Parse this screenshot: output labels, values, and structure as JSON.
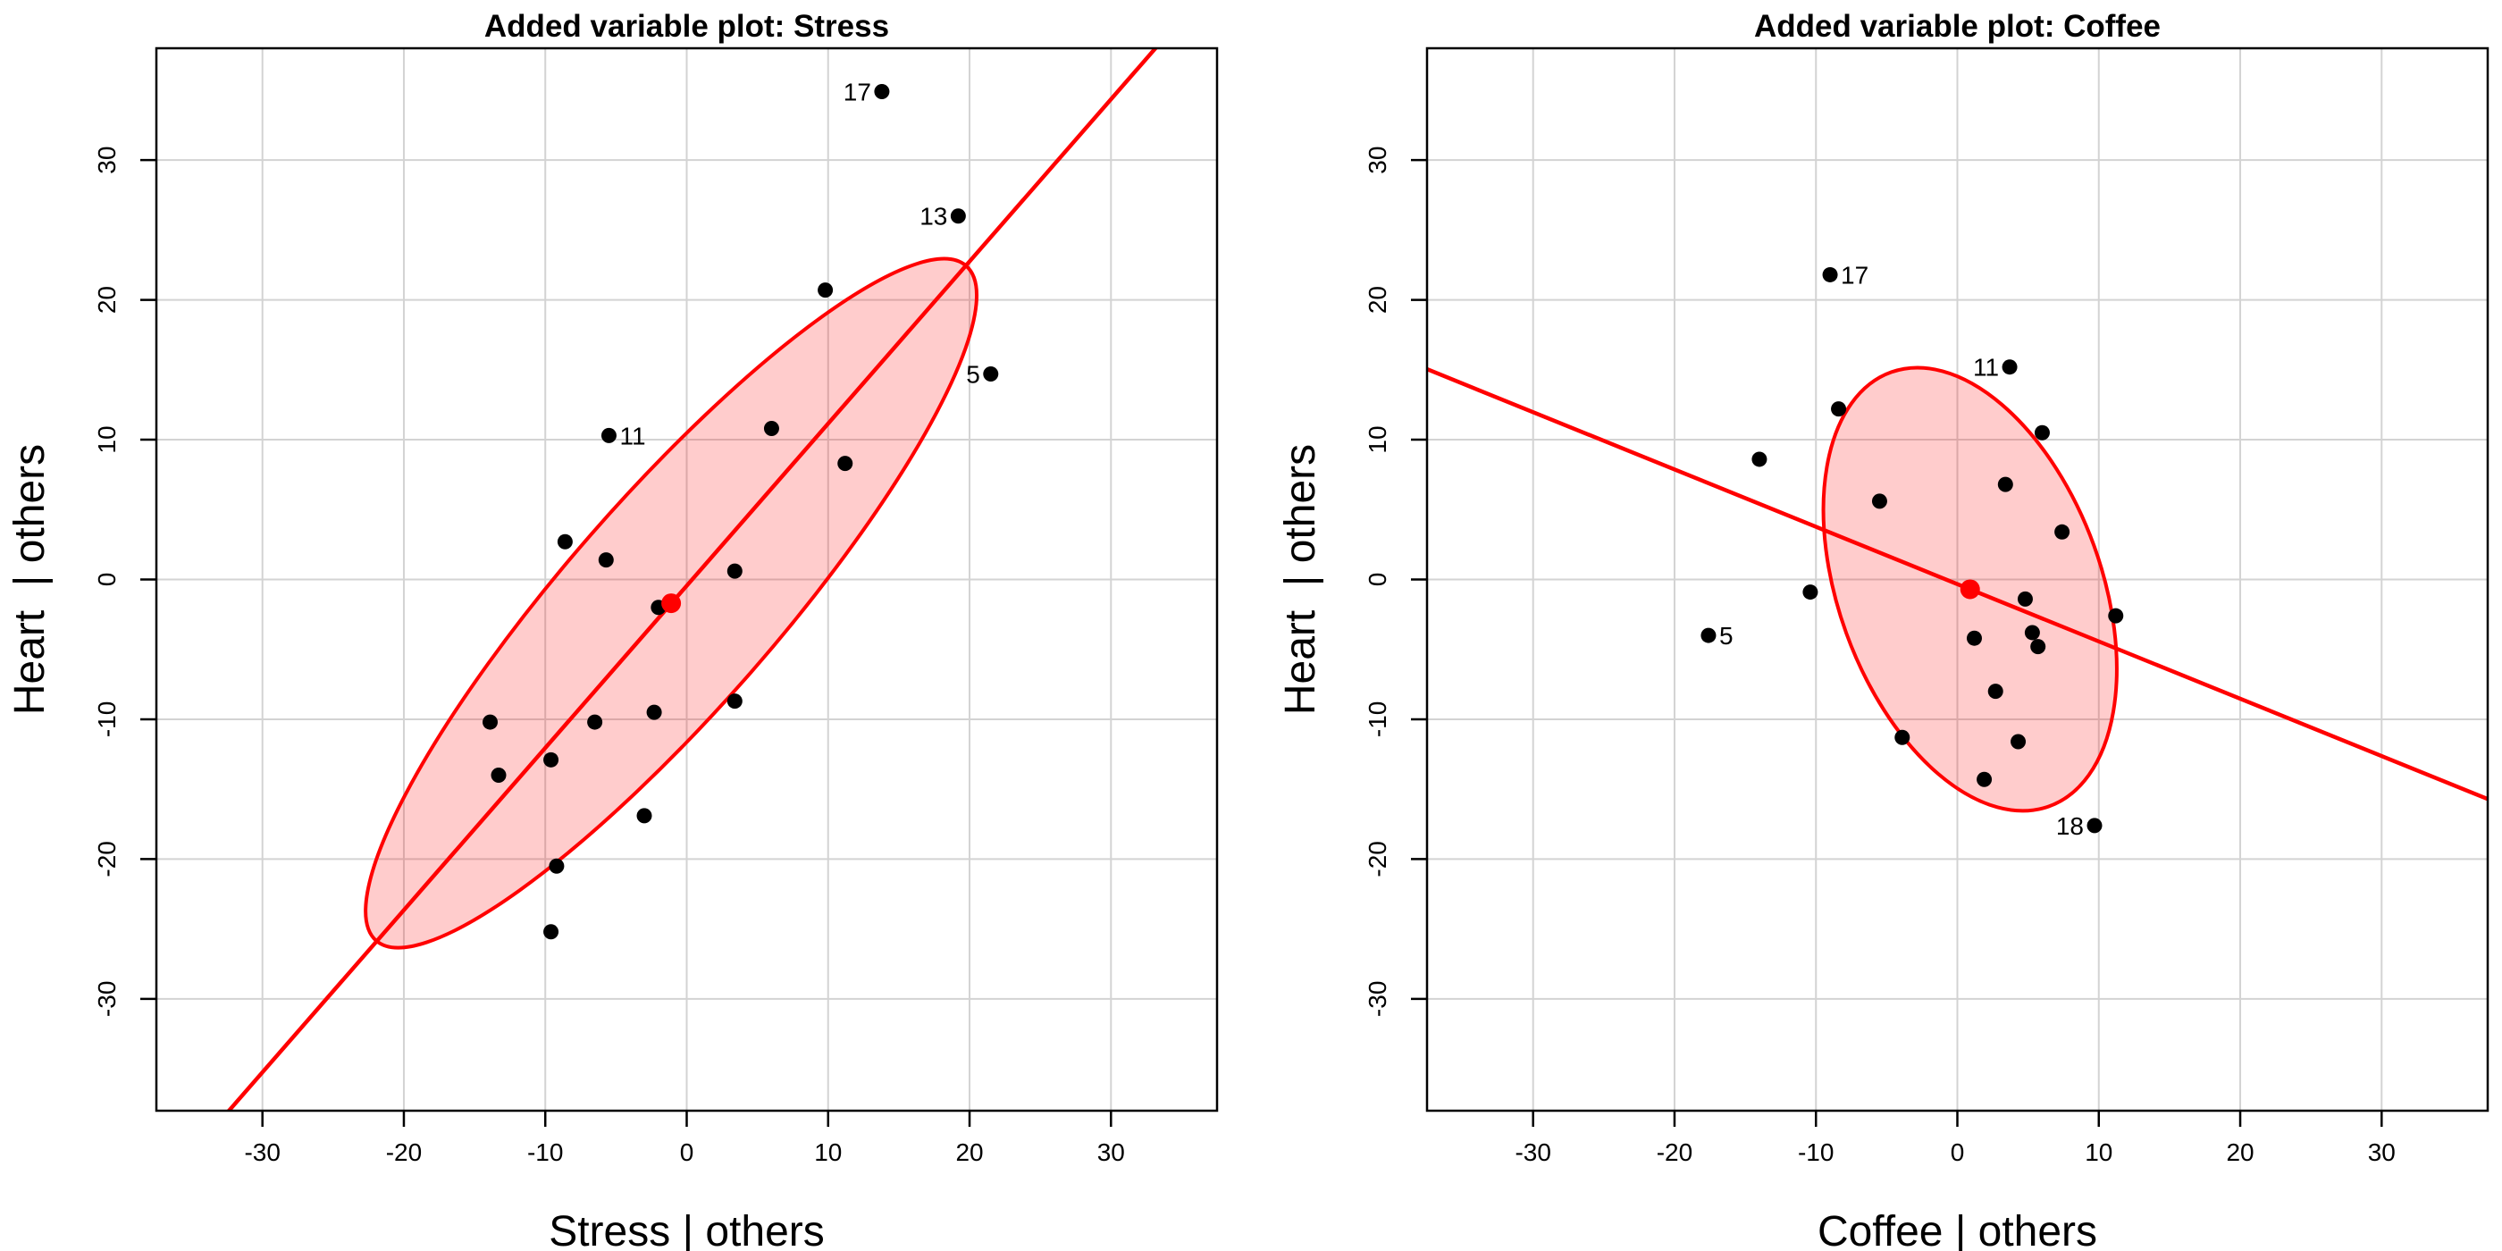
{
  "chart_data": [
    {
      "type": "scatter",
      "title": "Added variable plot: Stress",
      "xlabel": "Stress | others",
      "ylabel": "Heart  | others",
      "xlim": [
        -37.5,
        37.5
      ],
      "ylim": [
        -38,
        38
      ],
      "xticks": [
        -30,
        -20,
        -10,
        0,
        10,
        20,
        30
      ],
      "yticks": [
        -30,
        -20,
        -10,
        0,
        10,
        20,
        30
      ],
      "grid": true,
      "points": [
        {
          "x": 13.8,
          "y": 34.9,
          "label": "17"
        },
        {
          "x": 19.2,
          "y": 26.0,
          "label": "13"
        },
        {
          "x": 21.5,
          "y": 14.7,
          "label": "5"
        },
        {
          "x": -5.5,
          "y": 10.3,
          "label": "11"
        },
        {
          "x": 9.8,
          "y": 20.7,
          "label": ""
        },
        {
          "x": 6.0,
          "y": 10.8,
          "label": ""
        },
        {
          "x": 11.2,
          "y": 8.3,
          "label": ""
        },
        {
          "x": -8.6,
          "y": 2.7,
          "label": ""
        },
        {
          "x": -5.7,
          "y": 1.4,
          "label": ""
        },
        {
          "x": 3.4,
          "y": 0.6,
          "label": ""
        },
        {
          "x": -2.0,
          "y": -2.0,
          "label": ""
        },
        {
          "x": 3.4,
          "y": -8.7,
          "label": ""
        },
        {
          "x": -2.3,
          "y": -9.5,
          "label": ""
        },
        {
          "x": -6.5,
          "y": -10.2,
          "label": ""
        },
        {
          "x": -13.9,
          "y": -10.2,
          "label": ""
        },
        {
          "x": -9.6,
          "y": -12.9,
          "label": ""
        },
        {
          "x": -13.3,
          "y": -14.0,
          "label": ""
        },
        {
          "x": -3.0,
          "y": -16.9,
          "label": ""
        },
        {
          "x": -9.2,
          "y": -20.5,
          "label": ""
        },
        {
          "x": -9.6,
          "y": -25.2,
          "label": ""
        }
      ],
      "centroid": {
        "x": -1.1,
        "y": -1.7
      },
      "fit_line": {
        "slope": 1.16,
        "intercept": -0.45
      },
      "ellipse": {
        "cx": -1.1,
        "cy": -1.7,
        "rx": 31.9,
        "ry": 7.5,
        "angle_deg": 49.2
      }
    },
    {
      "type": "scatter",
      "title": "Added variable plot: Coffee",
      "xlabel": "Coffee | others",
      "ylabel": "Heart  | others",
      "xlim": [
        -37.5,
        37.5
      ],
      "ylim": [
        -38,
        38
      ],
      "xticks": [
        -30,
        -20,
        -10,
        0,
        10,
        20,
        30
      ],
      "yticks": [
        -30,
        -20,
        -10,
        0,
        10,
        20,
        30
      ],
      "grid": true,
      "points": [
        {
          "x": -9.0,
          "y": 21.8,
          "label": "17"
        },
        {
          "x": 3.7,
          "y": 15.2,
          "label": "11"
        },
        {
          "x": -17.6,
          "y": -4.0,
          "label": "5"
        },
        {
          "x": 9.7,
          "y": -17.6,
          "label": "18"
        },
        {
          "x": -8.4,
          "y": 12.2,
          "label": ""
        },
        {
          "x": 6.0,
          "y": 10.5,
          "label": ""
        },
        {
          "x": -14.0,
          "y": 8.6,
          "label": ""
        },
        {
          "x": 3.4,
          "y": 6.8,
          "label": ""
        },
        {
          "x": -5.5,
          "y": 5.6,
          "label": ""
        },
        {
          "x": 7.4,
          "y": 3.4,
          "label": ""
        },
        {
          "x": -10.4,
          "y": -0.9,
          "label": ""
        },
        {
          "x": 4.8,
          "y": -1.4,
          "label": ""
        },
        {
          "x": 11.2,
          "y": -2.6,
          "label": ""
        },
        {
          "x": 5.3,
          "y": -3.8,
          "label": ""
        },
        {
          "x": 1.2,
          "y": -4.2,
          "label": ""
        },
        {
          "x": 5.7,
          "y": -4.8,
          "label": ""
        },
        {
          "x": 2.7,
          "y": -8.0,
          "label": ""
        },
        {
          "x": -3.9,
          "y": -11.3,
          "label": ""
        },
        {
          "x": 4.3,
          "y": -11.6,
          "label": ""
        },
        {
          "x": 1.9,
          "y": -14.3,
          "label": ""
        }
      ],
      "centroid": {
        "x": 0.9,
        "y": -0.7
      },
      "fit_line": {
        "slope": -0.41,
        "intercept": -0.33
      },
      "ellipse": {
        "cx": 0.9,
        "cy": -0.7,
        "rx": 16.5,
        "ry": 9.3,
        "angle_deg": -70.3
      }
    }
  ]
}
